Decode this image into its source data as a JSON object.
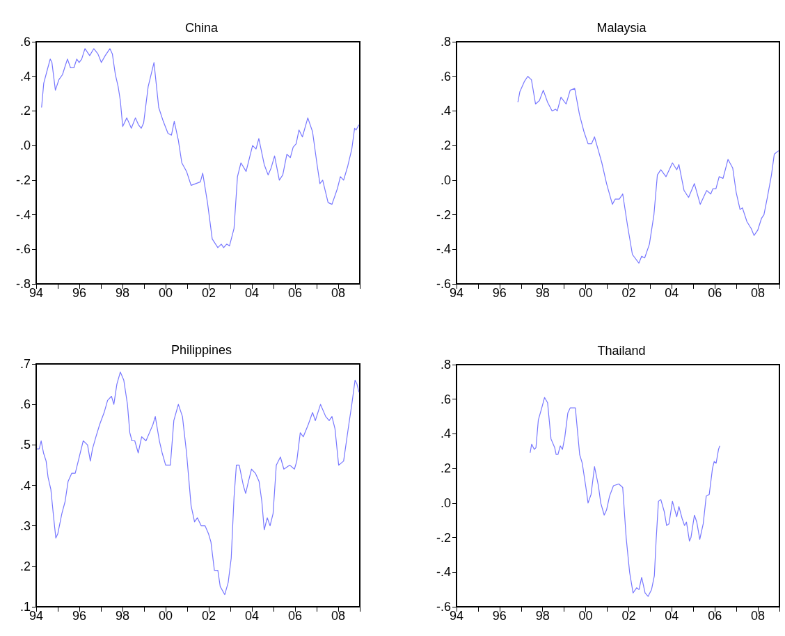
{
  "chart_data": [
    {
      "type": "line",
      "title": "China",
      "color": "#7777ff",
      "x": [
        1994.25,
        1994.35,
        1994.52,
        1994.65,
        1994.73,
        1994.89,
        1995.05,
        1995.22,
        1995.32,
        1995.45,
        1995.59,
        1995.75,
        1995.88,
        1995.99,
        1996.11,
        1996.26,
        1996.48,
        1996.67,
        1996.86,
        1997.02,
        1997.2,
        1997.42,
        1997.53,
        1997.67,
        1997.8,
        1997.9,
        1998.01,
        1998.2,
        1998.41,
        1998.6,
        1998.74,
        1998.87,
        1998.98,
        1999.19,
        1999.46,
        1999.68,
        1999.89,
        2000.11,
        2000.27,
        2000.4,
        2000.59,
        2000.75,
        2000.97,
        2001.18,
        2001.4,
        2001.61,
        2001.72,
        2001.94,
        2002.16,
        2002.42,
        2002.58,
        2002.69,
        2002.83,
        2002.96,
        2003.17,
        2003.33,
        2003.49,
        2003.73,
        2004.03,
        2004.19,
        2004.32,
        2004.57,
        2004.75,
        2004.89,
        2005.05,
        2005.27,
        2005.43,
        2005.62,
        2005.78,
        2005.91,
        2006.05,
        2006.18,
        2006.34,
        2006.59,
        2006.81,
        2007.02,
        2007.15,
        2007.28,
        2007.53,
        2007.71,
        2007.96,
        2008.1,
        2008.25,
        2008.44,
        2008.63,
        2008.76,
        2008.83,
        2008.96
      ],
      "values": [
        0.22,
        0.36,
        0.44,
        0.5,
        0.48,
        0.32,
        0.38,
        0.41,
        0.45,
        0.5,
        0.45,
        0.45,
        0.5,
        0.48,
        0.5,
        0.56,
        0.52,
        0.56,
        0.53,
        0.48,
        0.52,
        0.56,
        0.53,
        0.41,
        0.34,
        0.26,
        0.11,
        0.16,
        0.1,
        0.16,
        0.12,
        0.1,
        0.13,
        0.34,
        0.48,
        0.22,
        0.14,
        0.07,
        0.06,
        0.14,
        0.03,
        -0.1,
        -0.15,
        -0.23,
        -0.22,
        -0.21,
        -0.16,
        -0.33,
        -0.54,
        -0.59,
        -0.57,
        -0.59,
        -0.57,
        -0.58,
        -0.48,
        -0.18,
        -0.1,
        -0.15,
        0.0,
        -0.02,
        0.04,
        -0.11,
        -0.17,
        -0.13,
        -0.06,
        -0.2,
        -0.17,
        -0.05,
        -0.07,
        -0.01,
        0.01,
        0.09,
        0.05,
        0.16,
        0.08,
        -0.11,
        -0.22,
        -0.2,
        -0.33,
        -0.34,
        -0.25,
        -0.18,
        -0.2,
        -0.12,
        -0.02,
        0.1,
        0.09,
        0.12
      ],
      "xlim": [
        1994,
        2009
      ],
      "xticks": [
        {
          "value": 1994,
          "label": "94"
        },
        {
          "value": 1995,
          "label": null
        },
        {
          "value": 1996,
          "label": "96"
        },
        {
          "value": 1997,
          "label": null
        },
        {
          "value": 1998,
          "label": "98"
        },
        {
          "value": 1999,
          "label": null
        },
        {
          "value": 2000,
          "label": "00"
        },
        {
          "value": 2001,
          "label": null
        },
        {
          "value": 2002,
          "label": "02"
        },
        {
          "value": 2003,
          "label": null
        },
        {
          "value": 2004,
          "label": "04"
        },
        {
          "value": 2005,
          "label": null
        },
        {
          "value": 2006,
          "label": "06"
        },
        {
          "value": 2007,
          "label": null
        },
        {
          "value": 2008,
          "label": "08"
        },
        {
          "value": 2009,
          "label": null
        }
      ],
      "ylim": [
        -0.8,
        0.6
      ],
      "yticks": [
        {
          "value": -0.8,
          "label": "-.8"
        },
        {
          "value": -0.6,
          "label": "-.6"
        },
        {
          "value": -0.4,
          "label": "-.4"
        },
        {
          "value": -0.2,
          "label": "-.2"
        },
        {
          "value": 0,
          "label": ".0"
        },
        {
          "value": 0.2,
          "label": ".2"
        },
        {
          "value": 0.4,
          "label": ".4"
        },
        {
          "value": 0.6,
          "label": ".6"
        }
      ]
    },
    {
      "type": "line",
      "title": "Malaysia",
      "color": "#7777ff",
      "x": [
        1996.85,
        1996.94,
        1997.15,
        1997.31,
        1997.48,
        1997.67,
        1997.85,
        1998.03,
        1998.23,
        1998.44,
        1998.6,
        1998.68,
        1998.85,
        1999.09,
        1999.28,
        1999.49,
        1999.71,
        1999.92,
        2000.11,
        2000.27,
        2000.41,
        2000.57,
        2000.75,
        2000.97,
        2001.24,
        2001.37,
        2001.56,
        2001.72,
        2001.94,
        2002.17,
        2002.47,
        2002.6,
        2002.74,
        2002.96,
        2003.17,
        2003.33,
        2003.49,
        2003.73,
        2004.03,
        2004.23,
        2004.33,
        2004.57,
        2004.78,
        2005.05,
        2005.32,
        2005.62,
        2005.81,
        2005.91,
        2006.05,
        2006.2,
        2006.38,
        2006.61,
        2006.83,
        2006.99,
        2007.17,
        2007.28,
        2007.49,
        2007.69,
        2007.82,
        2007.99,
        2008.17,
        2008.28,
        2008.44,
        2008.63,
        2008.76,
        2008.96
      ],
      "values": [
        0.45,
        0.51,
        0.57,
        0.6,
        0.58,
        0.44,
        0.46,
        0.52,
        0.45,
        0.4,
        0.41,
        0.4,
        0.48,
        0.44,
        0.52,
        0.53,
        0.38,
        0.28,
        0.21,
        0.21,
        0.25,
        0.18,
        0.1,
        -0.02,
        -0.14,
        -0.11,
        -0.11,
        -0.08,
        -0.26,
        -0.43,
        -0.48,
        -0.44,
        -0.45,
        -0.37,
        -0.2,
        0.03,
        0.06,
        0.02,
        0.1,
        0.06,
        0.09,
        -0.06,
        -0.1,
        -0.02,
        -0.14,
        -0.06,
        -0.08,
        -0.05,
        -0.05,
        0.02,
        0.01,
        0.12,
        0.07,
        -0.07,
        -0.17,
        -0.16,
        -0.24,
        -0.28,
        -0.32,
        -0.29,
        -0.22,
        -0.2,
        -0.1,
        0.03,
        0.15,
        0.17
      ],
      "xlim": [
        1994,
        2009
      ],
      "xticks": [
        {
          "value": 1994,
          "label": "94"
        },
        {
          "value": 1995,
          "label": null
        },
        {
          "value": 1996,
          "label": "96"
        },
        {
          "value": 1997,
          "label": null
        },
        {
          "value": 1998,
          "label": "98"
        },
        {
          "value": 1999,
          "label": null
        },
        {
          "value": 2000,
          "label": "00"
        },
        {
          "value": 2001,
          "label": null
        },
        {
          "value": 2002,
          "label": "02"
        },
        {
          "value": 2003,
          "label": null
        },
        {
          "value": 2004,
          "label": "04"
        },
        {
          "value": 2005,
          "label": null
        },
        {
          "value": 2006,
          "label": "06"
        },
        {
          "value": 2007,
          "label": null
        },
        {
          "value": 2008,
          "label": "08"
        },
        {
          "value": 2009,
          "label": null
        }
      ],
      "ylim": [
        -0.6,
        0.8
      ],
      "yticks": [
        {
          "value": -0.6,
          "label": "-.6"
        },
        {
          "value": -0.4,
          "label": "-.4"
        },
        {
          "value": -0.2,
          "label": "-.2"
        },
        {
          "value": 0,
          "label": ".0"
        },
        {
          "value": 0.2,
          "label": ".2"
        },
        {
          "value": 0.4,
          "label": ".4"
        },
        {
          "value": 0.6,
          "label": ".6"
        },
        {
          "value": 0.8,
          "label": ".8"
        }
      ]
    },
    {
      "type": "line",
      "title": "Philippines",
      "color": "#7777ff",
      "x": [
        1994.03,
        1994.14,
        1994.23,
        1994.34,
        1994.46,
        1994.55,
        1994.68,
        1994.81,
        1994.91,
        1995.0,
        1995.19,
        1995.34,
        1995.48,
        1995.65,
        1995.81,
        1995.95,
        1996.18,
        1996.38,
        1996.51,
        1996.61,
        1996.77,
        1996.94,
        1997.15,
        1997.31,
        1997.49,
        1997.6,
        1997.74,
        1997.9,
        1998.06,
        1998.23,
        1998.34,
        1998.44,
        1998.57,
        1998.73,
        1998.89,
        1999.09,
        1999.25,
        1999.41,
        1999.52,
        1999.71,
        1999.84,
        2000.0,
        2000.22,
        2000.38,
        2000.59,
        2000.78,
        2000.97,
        2001.18,
        2001.34,
        2001.47,
        2001.65,
        2001.83,
        2001.99,
        2002.1,
        2002.26,
        2002.42,
        2002.53,
        2002.74,
        2002.9,
        2003.04,
        2003.17,
        2003.28,
        2003.41,
        2003.6,
        2003.71,
        2003.84,
        2003.98,
        2004.16,
        2004.33,
        2004.46,
        2004.57,
        2004.71,
        2004.84,
        2004.98,
        2005.13,
        2005.32,
        2005.48,
        2005.75,
        2005.97,
        2006.08,
        2006.24,
        2006.38,
        2006.61,
        2006.81,
        2006.94,
        2007.18,
        2007.42,
        2007.58,
        2007.71,
        2007.85,
        2008.02,
        2008.25,
        2008.49,
        2008.63,
        2008.78,
        2008.87,
        2008.96
      ],
      "values": [
        0.49,
        0.49,
        0.51,
        0.48,
        0.46,
        0.42,
        0.39,
        0.32,
        0.27,
        0.28,
        0.33,
        0.36,
        0.41,
        0.43,
        0.43,
        0.46,
        0.51,
        0.5,
        0.46,
        0.49,
        0.52,
        0.55,
        0.58,
        0.61,
        0.62,
        0.6,
        0.65,
        0.68,
        0.66,
        0.6,
        0.53,
        0.51,
        0.51,
        0.48,
        0.52,
        0.51,
        0.53,
        0.55,
        0.57,
        0.51,
        0.48,
        0.45,
        0.45,
        0.56,
        0.6,
        0.57,
        0.48,
        0.35,
        0.31,
        0.32,
        0.3,
        0.3,
        0.28,
        0.26,
        0.19,
        0.19,
        0.15,
        0.13,
        0.16,
        0.22,
        0.37,
        0.45,
        0.45,
        0.4,
        0.38,
        0.41,
        0.44,
        0.43,
        0.41,
        0.36,
        0.29,
        0.32,
        0.3,
        0.33,
        0.45,
        0.47,
        0.44,
        0.45,
        0.44,
        0.46,
        0.53,
        0.52,
        0.55,
        0.58,
        0.56,
        0.6,
        0.57,
        0.56,
        0.57,
        0.54,
        0.45,
        0.46,
        0.55,
        0.6,
        0.66,
        0.65,
        0.63
      ],
      "xlim": [
        1994,
        2009
      ],
      "xticks": [
        {
          "value": 1994,
          "label": "94"
        },
        {
          "value": 1995,
          "label": null
        },
        {
          "value": 1996,
          "label": "96"
        },
        {
          "value": 1997,
          "label": null
        },
        {
          "value": 1998,
          "label": "98"
        },
        {
          "value": 1999,
          "label": null
        },
        {
          "value": 2000,
          "label": "00"
        },
        {
          "value": 2001,
          "label": null
        },
        {
          "value": 2002,
          "label": "02"
        },
        {
          "value": 2003,
          "label": null
        },
        {
          "value": 2004,
          "label": "04"
        },
        {
          "value": 2005,
          "label": null
        },
        {
          "value": 2006,
          "label": "06"
        },
        {
          "value": 2007,
          "label": null
        },
        {
          "value": 2008,
          "label": "08"
        },
        {
          "value": 2009,
          "label": null
        }
      ],
      "ylim": [
        0.1,
        0.7
      ],
      "yticks": [
        {
          "value": 0.1,
          "label": ".1"
        },
        {
          "value": 0.2,
          "label": ".2"
        },
        {
          "value": 0.3,
          "label": ".3"
        },
        {
          "value": 0.4,
          "label": ".4"
        },
        {
          "value": 0.5,
          "label": ".5"
        },
        {
          "value": 0.6,
          "label": ".6"
        },
        {
          "value": 0.7,
          "label": ".7"
        }
      ]
    },
    {
      "type": "line",
      "title": "Thailand",
      "color": "#7777ff",
      "x": [
        1997.42,
        1997.49,
        1997.61,
        1997.69,
        1997.8,
        1997.96,
        1998.09,
        1998.23,
        1998.39,
        1998.56,
        1998.63,
        1998.71,
        1998.82,
        1998.92,
        1999.03,
        1999.17,
        1999.28,
        1999.52,
        1999.72,
        1999.84,
        2000.01,
        2000.11,
        2000.25,
        2000.41,
        2000.59,
        2000.7,
        2000.86,
        2000.97,
        2001.11,
        2001.29,
        2001.54,
        2001.72,
        2001.88,
        2002.04,
        2002.2,
        2002.37,
        2002.48,
        2002.6,
        2002.76,
        2002.9,
        2003.06,
        2003.19,
        2003.27,
        2003.38,
        2003.49,
        2003.65,
        2003.76,
        2003.87,
        2004.03,
        2004.14,
        2004.23,
        2004.33,
        2004.48,
        2004.59,
        2004.68,
        2004.82,
        2004.89,
        2005.05,
        2005.16,
        2005.3,
        2005.46,
        2005.6,
        2005.74,
        2005.89,
        2005.97,
        2006.06,
        2006.17,
        2006.23
      ],
      "values": [
        0.29,
        0.34,
        0.31,
        0.32,
        0.48,
        0.55,
        0.61,
        0.58,
        0.37,
        0.32,
        0.28,
        0.28,
        0.33,
        0.31,
        0.38,
        0.52,
        0.55,
        0.55,
        0.28,
        0.23,
        0.09,
        0.0,
        0.05,
        0.21,
        0.1,
        0.0,
        -0.07,
        -0.04,
        0.04,
        0.1,
        0.11,
        0.09,
        -0.2,
        -0.4,
        -0.52,
        -0.49,
        -0.5,
        -0.43,
        -0.52,
        -0.54,
        -0.5,
        -0.42,
        -0.22,
        0.01,
        0.02,
        -0.05,
        -0.13,
        -0.12,
        0.01,
        -0.04,
        -0.08,
        -0.02,
        -0.09,
        -0.13,
        -0.11,
        -0.22,
        -0.2,
        -0.07,
        -0.11,
        -0.21,
        -0.12,
        0.04,
        0.05,
        0.2,
        0.24,
        0.23,
        0.31,
        0.33
      ],
      "xlim": [
        1994,
        2009
      ],
      "xticks": [
        {
          "value": 1994,
          "label": "94"
        },
        {
          "value": 1995,
          "label": null
        },
        {
          "value": 1996,
          "label": "96"
        },
        {
          "value": 1997,
          "label": null
        },
        {
          "value": 1998,
          "label": "98"
        },
        {
          "value": 1999,
          "label": null
        },
        {
          "value": 2000,
          "label": "00"
        },
        {
          "value": 2001,
          "label": null
        },
        {
          "value": 2002,
          "label": "02"
        },
        {
          "value": 2003,
          "label": null
        },
        {
          "value": 2004,
          "label": "04"
        },
        {
          "value": 2005,
          "label": null
        },
        {
          "value": 2006,
          "label": "06"
        },
        {
          "value": 2007,
          "label": null
        },
        {
          "value": 2008,
          "label": "08"
        },
        {
          "value": 2009,
          "label": null
        }
      ],
      "ylim": [
        -0.6,
        0.8
      ],
      "yticks": [
        {
          "value": -0.6,
          "label": "-.6"
        },
        {
          "value": -0.4,
          "label": "-.4"
        },
        {
          "value": -0.2,
          "label": "-.2"
        },
        {
          "value": 0,
          "label": ".0"
        },
        {
          "value": 0.2,
          "label": ".2"
        },
        {
          "value": 0.4,
          "label": ".4"
        },
        {
          "value": 0.6,
          "label": ".6"
        },
        {
          "value": 0.8,
          "label": ".8"
        }
      ]
    }
  ]
}
